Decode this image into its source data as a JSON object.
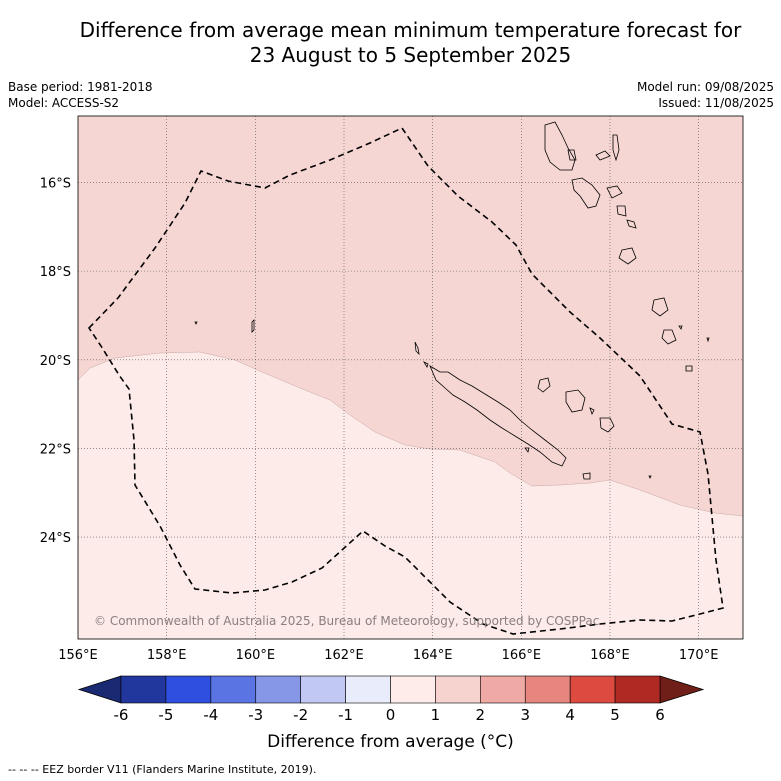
{
  "title_line1": "Difference from average mean minimum temperature forecast for",
  "title_line2": "23 August to 5 September 2025",
  "base_period": "Base period: 1981-2018",
  "model": "Model: ACCESS-S2",
  "model_run": "Model run: 09/08/2025",
  "issued": "Issued: 11/08/2025",
  "copyright": "© Commonwealth of Australia 2025, Bureau of Meteorology, supported by COSPPac",
  "map": {
    "lon_range": [
      156,
      171
    ],
    "lat_range": [
      -26.3,
      -14.5
    ],
    "lat_labels": [
      "16°S",
      "18°S",
      "20°S",
      "22°S",
      "24°S"
    ],
    "lon_labels": [
      "156°E",
      "158°E",
      "160°E",
      "162°E",
      "164°E",
      "166°E",
      "168°E",
      "170°E"
    ],
    "zones": [
      {
        "range": "1 to 2",
        "color": "#f5d6d3"
      },
      {
        "range": "0 to 1",
        "color": "#fcebe9"
      }
    ]
  },
  "colorbar": {
    "title": "Difference from average (°C)",
    "ticks": [
      "-6",
      "-5",
      "-4",
      "-3",
      "-2",
      "-1",
      "0",
      "1",
      "2",
      "3",
      "4",
      "5",
      "6"
    ],
    "colors": [
      "#22379e",
      "#2e4fe0",
      "#5a74e3",
      "#8697e8",
      "#c1c8f3",
      "#e8ecfb",
      "#fdecea",
      "#f6d3cf",
      "#efaaa5",
      "#e7867e",
      "#dd4a40",
      "#ae2a22"
    ],
    "extend_low": "#1a2a72",
    "extend_high": "#701e18"
  },
  "footer": "--  --  -- EEZ border V11 (Flanders Marine Institute, 2019)."
}
